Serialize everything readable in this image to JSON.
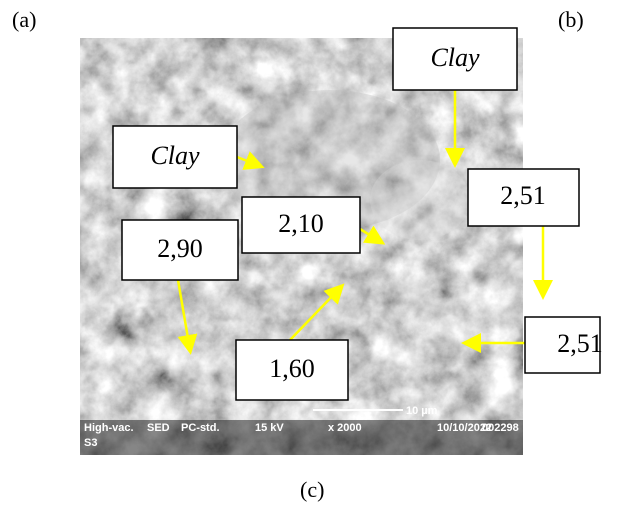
{
  "panel_labels": [
    "(a)",
    "(b)",
    "(c)"
  ],
  "annotations": [
    "Clay",
    "Clay",
    "2,10",
    "2,90",
    "2,51",
    "1,60",
    "2,51"
  ],
  "scale_bar": "10 µm",
  "info_bar": [
    "High-vac.",
    "SED",
    "PC-std.",
    "15 kV",
    "x 2000",
    "10/10/2022",
    "002298"
  ],
  "sample": "S3"
}
